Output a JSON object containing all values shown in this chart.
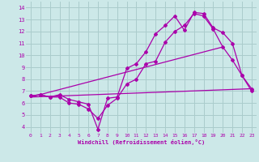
{
  "xlabel": "Windchill (Refroidissement éolien,°C)",
  "background_color": "#cce8e8",
  "grid_color": "#aacccc",
  "line_color": "#aa00aa",
  "xlim": [
    -0.5,
    23.5
  ],
  "ylim": [
    3.5,
    14.5
  ],
  "yticks": [
    4,
    5,
    6,
    7,
    8,
    9,
    10,
    11,
    12,
    13,
    14
  ],
  "xticks": [
    0,
    1,
    2,
    3,
    4,
    5,
    6,
    7,
    8,
    9,
    10,
    11,
    12,
    13,
    14,
    15,
    16,
    17,
    18,
    19,
    20,
    21,
    22,
    23
  ],
  "line1_x": [
    0,
    1,
    2,
    3,
    4,
    5,
    6,
    7,
    8,
    9,
    10,
    11,
    12,
    13,
    14,
    15,
    16,
    17,
    18,
    19,
    20,
    21,
    22,
    23
  ],
  "line1_y": [
    6.6,
    6.7,
    6.5,
    6.5,
    6.0,
    5.9,
    5.5,
    4.7,
    5.8,
    6.4,
    7.6,
    8.0,
    9.3,
    9.5,
    11.1,
    12.0,
    12.5,
    13.5,
    13.3,
    12.2,
    10.7,
    9.6,
    8.3,
    7.2
  ],
  "line2_x": [
    0,
    1,
    2,
    3,
    4,
    5,
    6,
    7,
    8,
    9,
    10,
    11,
    12,
    13,
    14,
    15,
    16,
    17,
    18,
    19,
    20,
    21,
    22,
    23
  ],
  "line2_y": [
    6.6,
    6.7,
    6.5,
    6.7,
    6.3,
    6.1,
    5.9,
    3.8,
    6.4,
    6.5,
    8.9,
    9.3,
    10.3,
    11.8,
    12.5,
    13.3,
    12.1,
    13.6,
    13.5,
    12.3,
    11.9,
    11.0,
    8.3,
    7.0
  ],
  "line3_x": [
    0,
    23
  ],
  "line3_y": [
    6.5,
    7.2
  ],
  "line4_x": [
    0,
    20
  ],
  "line4_y": [
    6.5,
    10.7
  ]
}
